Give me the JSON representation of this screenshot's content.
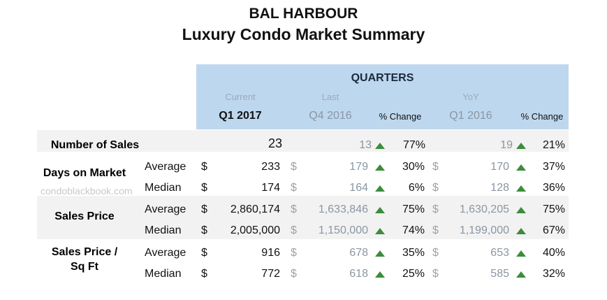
{
  "title": "BAL HARBOUR",
  "subtitle": "Luxury Condo Market Summary",
  "watermark": "condoblackbook.com",
  "header": {
    "group": "QUARTERS",
    "current_label": "Current",
    "last_label": "Last",
    "yoy_label": "YoY",
    "current_period": "Q1 2017",
    "last_period": "Q4 2016",
    "yoy_period": "Q1 2016",
    "pct_change": "% Change"
  },
  "colors": {
    "header_band": "#bdd7ee",
    "row_band": "#f2f2f2",
    "up_arrow": "#3c8c3c"
  },
  "rows": {
    "sales": {
      "label": "Number of Sales",
      "current": "23",
      "last": "13",
      "last_pct": "77%",
      "yoy": "19",
      "yoy_pct": "21%"
    },
    "dom": {
      "label": "Days on Market",
      "avg": {
        "label": "Average",
        "cur_sym": "$",
        "current": "233",
        "last_sym": "$",
        "last": "179",
        "last_pct": "30%",
        "yoy_sym": "$",
        "yoy": "170",
        "yoy_pct": "37%"
      },
      "med": {
        "label": "Median",
        "cur_sym": "$",
        "current": "174",
        "last_sym": "$",
        "last": "164",
        "last_pct": "6%",
        "yoy_sym": "$",
        "yoy": "128",
        "yoy_pct": "36%"
      }
    },
    "price": {
      "label": "Sales Price",
      "avg": {
        "label": "Average",
        "cur_sym": "$",
        "current": "2,860,174",
        "last_sym": "$",
        "last": "1,633,846",
        "last_pct": "75%",
        "yoy_sym": "$",
        "yoy": "1,630,205",
        "yoy_pct": "75%"
      },
      "med": {
        "label": "Median",
        "cur_sym": "$",
        "current": "2,005,000",
        "last_sym": "$",
        "last": "1,150,000",
        "last_pct": "74%",
        "yoy_sym": "$",
        "yoy": "1,199,000",
        "yoy_pct": "67%"
      }
    },
    "psf": {
      "label_line1": "Sales Price /",
      "label_line2": "Sq Ft",
      "avg": {
        "label": "Average",
        "cur_sym": "$",
        "current": "916",
        "last_sym": "$",
        "last": "678",
        "last_pct": "35%",
        "yoy_sym": "$",
        "yoy": "653",
        "yoy_pct": "40%"
      },
      "med": {
        "label": "Median",
        "cur_sym": "$",
        "current": "772",
        "last_sym": "$",
        "last": "618",
        "last_pct": "25%",
        "yoy_sym": "$",
        "yoy": "585",
        "yoy_pct": "32%"
      }
    }
  }
}
